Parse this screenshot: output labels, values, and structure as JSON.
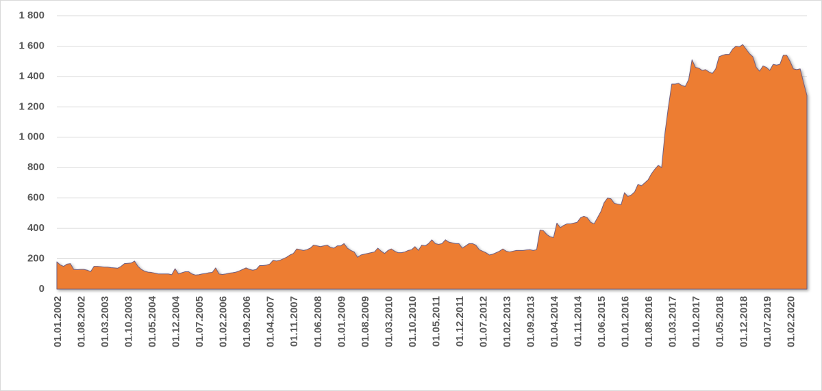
{
  "chart_data": {
    "type": "area",
    "color": "#ed7d31",
    "grid": true,
    "ylim": [
      0,
      1800
    ],
    "yticks": [
      0,
      200,
      400,
      600,
      800,
      {
        "value": 1000,
        "label": "1 000"
      },
      {
        "value": 1200,
        "label": "1 200"
      },
      {
        "value": 1400,
        "label": "1 400"
      },
      {
        "value": 1600,
        "label": "1 600"
      },
      {
        "value": 1800,
        "label": "1 800"
      }
    ],
    "categories": [
      "01.01.2002",
      null,
      null,
      null,
      null,
      null,
      null,
      "01.08.2002",
      null,
      null,
      null,
      null,
      null,
      null,
      "01.03.2003",
      null,
      null,
      null,
      null,
      null,
      null,
      "01.10.2003",
      null,
      null,
      null,
      null,
      null,
      null,
      "01.05.2004",
      null,
      null,
      null,
      null,
      null,
      null,
      "01.12.2004",
      null,
      null,
      null,
      null,
      null,
      null,
      "01.07.2005",
      null,
      null,
      null,
      null,
      null,
      null,
      "01.02.2006",
      null,
      null,
      null,
      null,
      null,
      null,
      "01.09.2006",
      null,
      null,
      null,
      null,
      null,
      null,
      "01.04.2007",
      null,
      null,
      null,
      null,
      null,
      null,
      "01.11.2007",
      null,
      null,
      null,
      null,
      null,
      null,
      "01.06.2008",
      null,
      null,
      null,
      null,
      null,
      null,
      "01.01.2009",
      null,
      null,
      null,
      null,
      null,
      null,
      "01.08.2009",
      null,
      null,
      null,
      null,
      null,
      null,
      "01.03.2010",
      null,
      null,
      null,
      null,
      null,
      null,
      "01.10.2010",
      null,
      null,
      null,
      null,
      null,
      null,
      "01.05.2011",
      null,
      null,
      null,
      null,
      null,
      null,
      "01.12.2011",
      null,
      null,
      null,
      null,
      null,
      null,
      "01.07.2012",
      null,
      null,
      null,
      null,
      null,
      null,
      "01.02.2013",
      null,
      null,
      null,
      null,
      null,
      null,
      "01.09.2013",
      null,
      null,
      null,
      null,
      null,
      null,
      "01.04.2014",
      null,
      null,
      null,
      null,
      null,
      null,
      "01.11.2014",
      null,
      null,
      null,
      null,
      null,
      null,
      "01.06.2015",
      null,
      null,
      null,
      null,
      null,
      null,
      "01.01.2016",
      null,
      null,
      null,
      null,
      null,
      null,
      "01.08.2016",
      null,
      null,
      null,
      null,
      null,
      null,
      "01.03.2017",
      null,
      null,
      null,
      null,
      null,
      null,
      "01.10.2017",
      null,
      null,
      null,
      null,
      null,
      null,
      "01.05.2018",
      null,
      null,
      null,
      null,
      null,
      null,
      "01.12.2018",
      null,
      null,
      null,
      null,
      null,
      null,
      "01.07.2019",
      null,
      null,
      null,
      null,
      null,
      null,
      "01.02.2020",
      null,
      null,
      null,
      null,
      null
    ],
    "values": [
      180,
      160,
      150,
      165,
      168,
      130,
      128,
      130,
      130,
      125,
      115,
      150,
      150,
      148,
      145,
      145,
      142,
      140,
      138,
      150,
      168,
      170,
      172,
      185,
      150,
      130,
      118,
      112,
      110,
      105,
      100,
      100,
      100,
      100,
      95,
      135,
      100,
      108,
      115,
      115,
      100,
      93,
      95,
      100,
      103,
      108,
      110,
      140,
      100,
      97,
      100,
      105,
      108,
      112,
      120,
      130,
      140,
      130,
      125,
      130,
      155,
      155,
      158,
      165,
      190,
      185,
      190,
      200,
      210,
      225,
      235,
      265,
      260,
      255,
      260,
      270,
      290,
      285,
      280,
      285,
      290,
      275,
      270,
      285,
      285,
      300,
      270,
      255,
      245,
      210,
      225,
      230,
      235,
      240,
      245,
      270,
      250,
      235,
      255,
      265,
      250,
      240,
      240,
      245,
      255,
      260,
      280,
      255,
      290,
      285,
      300,
      325,
      300,
      295,
      300,
      325,
      310,
      305,
      300,
      300,
      270,
      285,
      300,
      300,
      290,
      260,
      250,
      240,
      225,
      230,
      240,
      250,
      265,
      250,
      245,
      250,
      255,
      255,
      255,
      258,
      260,
      255,
      260,
      390,
      385,
      360,
      345,
      340,
      435,
      405,
      420,
      430,
      430,
      435,
      440,
      470,
      480,
      470,
      440,
      430,
      470,
      510,
      570,
      600,
      595,
      565,
      560,
      555,
      635,
      610,
      620,
      640,
      690,
      680,
      700,
      720,
      760,
      790,
      815,
      800,
      1030,
      1200,
      1350,
      1350,
      1355,
      1340,
      1335,
      1380,
      1510,
      1460,
      1455,
      1440,
      1445,
      1430,
      1420,
      1450,
      1530,
      1540,
      1545,
      1545,
      1580,
      1600,
      1595,
      1610,
      1580,
      1550,
      1530,
      1460,
      1435,
      1470,
      1460,
      1440,
      1480,
      1475,
      1480,
      1540,
      1540,
      1500,
      1450,
      1445,
      1450,
      1360,
      1275
    ]
  }
}
